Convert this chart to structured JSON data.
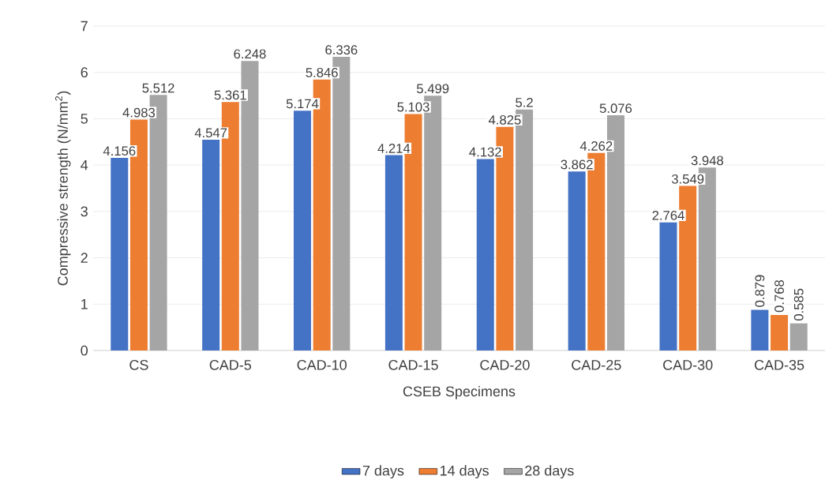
{
  "chart_data": {
    "type": "bar",
    "xlabel": "CSEB Specimens",
    "ylabel": "Compressive strength (N/mm$^{2}$)",
    "categories": [
      "CS",
      "CAD-5",
      "CAD-10",
      "CAD-15",
      "CAD-20",
      "CAD-25",
      "CAD-30",
      "CAD-35"
    ],
    "series": [
      {
        "name": "7 days",
        "color": "#4472c4",
        "values": [
          4.156,
          4.547,
          5.174,
          4.214,
          4.132,
          3.862,
          2.764,
          0.879
        ]
      },
      {
        "name": "14 days",
        "color": "#ed7d31",
        "values": [
          4.983,
          5.361,
          5.846,
          5.103,
          4.825,
          4.262,
          3.549,
          0.768
        ]
      },
      {
        "name": "28 days",
        "color": "#a5a5a5",
        "values": [
          5.512,
          6.248,
          6.336,
          5.499,
          5.2,
          5.076,
          3.948,
          0.585
        ]
      }
    ],
    "ylim": [
      0,
      7
    ],
    "yticks": [
      0,
      1,
      2,
      3,
      4,
      5,
      6,
      7
    ],
    "grid": "y",
    "legend": "bottom",
    "data_labels": true
  }
}
